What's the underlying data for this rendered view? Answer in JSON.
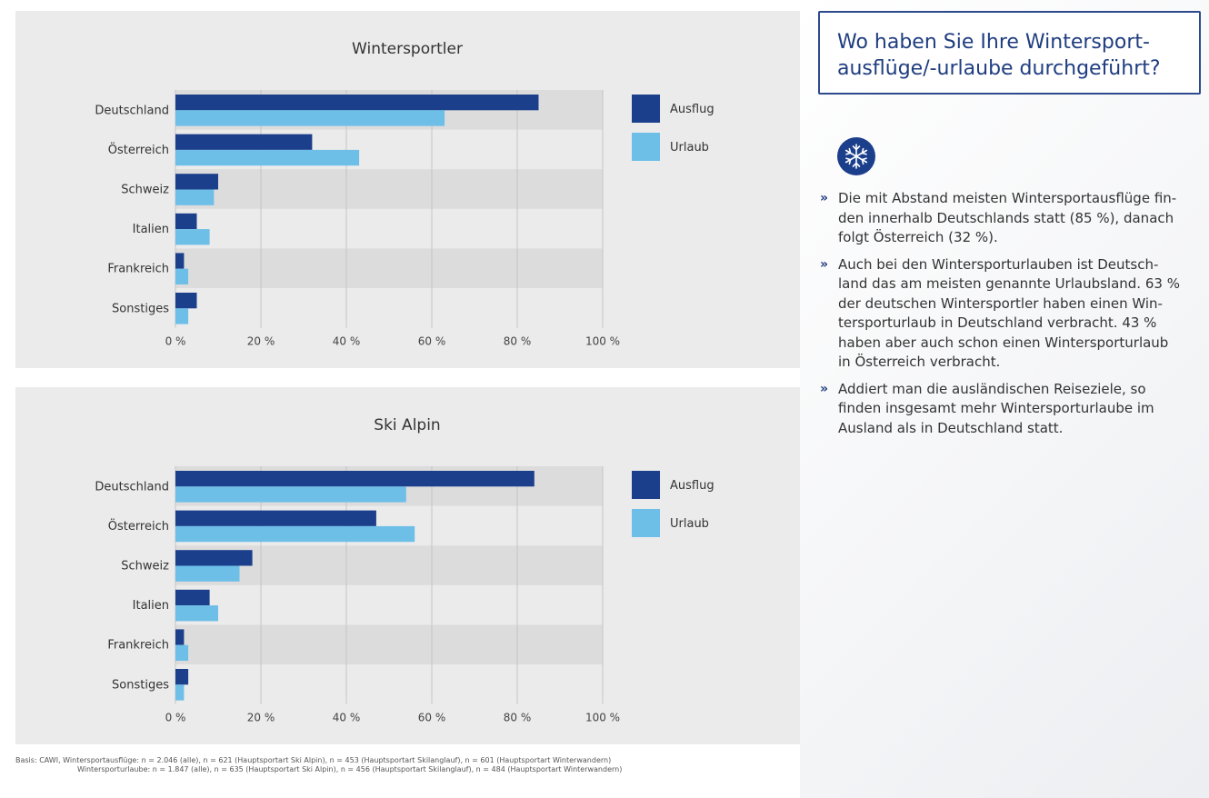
{
  "question": {
    "line1": "Wo haben Sie Ihre Wintersport-",
    "line2": "ausflüge/-urlaube durchgeführt?"
  },
  "icon": "snowflake-icon",
  "bullet_marker": "»",
  "bullets": [
    {
      "lines": [
        "Die mit Abstand meisten Wintersportausflüge fin-",
        "den innerhalb Deutschlands statt (85 %), danach",
        "folgt Österreich (32 %)."
      ]
    },
    {
      "lines": [
        "Auch bei den Wintersporturlauben ist Deutsch-",
        "land das am meisten genannte Urlaubsland. 63 %",
        "der deutschen Wintersportler haben einen Win-",
        "tersporturlaub in Deutschland verbracht. 43 %",
        "haben aber auch schon einen Wintersporturlaub",
        "in Österreich verbracht."
      ]
    },
    {
      "lines": [
        "Addiert man die ausländischen Reiseziele, so",
        "finden insgesamt mehr Wintersporturlaube im",
        "Ausland als in Deutschland statt."
      ]
    }
  ],
  "footnote": {
    "line1": "Basis: CAWI, Wintersportausflüge: n = 2.046 (alle), n = 621 (Hauptsportart Ski Alpin), n = 453 (Hauptsportart Skilanglauf), n = 601 (Hauptsportart Winterwandern)",
    "line2": "Wintersporturlaube: n = 1.847 (alle), n = 635 (Hauptsportart Ski Alpin), n = 456 (Hauptsportart Skilanglauf), n = 484 (Hauptsportart Winterwandern)"
  },
  "colors": {
    "ausflug": "#1c3f8c",
    "urlaub": "#6dbfe8",
    "band": "#dcdcdd",
    "grid": "#c4c4c6",
    "title": "#1f3d80"
  },
  "chart_data": [
    {
      "type": "bar",
      "orientation": "horizontal",
      "title": "Wintersportler",
      "categories": [
        "Deutschland",
        "Österreich",
        "Schweiz",
        "Italien",
        "Frankreich",
        "Sonstiges"
      ],
      "series": [
        {
          "name": "Ausflug",
          "values": [
            85,
            32,
            10,
            5,
            2,
            5
          ]
        },
        {
          "name": "Urlaub",
          "values": [
            63,
            43,
            9,
            8,
            3,
            3
          ]
        }
      ],
      "xlim": [
        0,
        100
      ],
      "xticks": [
        "0 %",
        "20 %",
        "40 %",
        "60 %",
        "80 %",
        "100 %"
      ],
      "legend": "right"
    },
    {
      "type": "bar",
      "orientation": "horizontal",
      "title": "Ski Alpin",
      "categories": [
        "Deutschland",
        "Österreich",
        "Schweiz",
        "Italien",
        "Frankreich",
        "Sonstiges"
      ],
      "series": [
        {
          "name": "Ausflug",
          "values": [
            84,
            47,
            18,
            8,
            2,
            3
          ]
        },
        {
          "name": "Urlaub",
          "values": [
            54,
            56,
            15,
            10,
            3,
            2
          ]
        }
      ],
      "xlim": [
        0,
        100
      ],
      "xticks": [
        "0 %",
        "20 %",
        "40 %",
        "60 %",
        "80 %",
        "100 %"
      ],
      "legend": "right"
    }
  ]
}
